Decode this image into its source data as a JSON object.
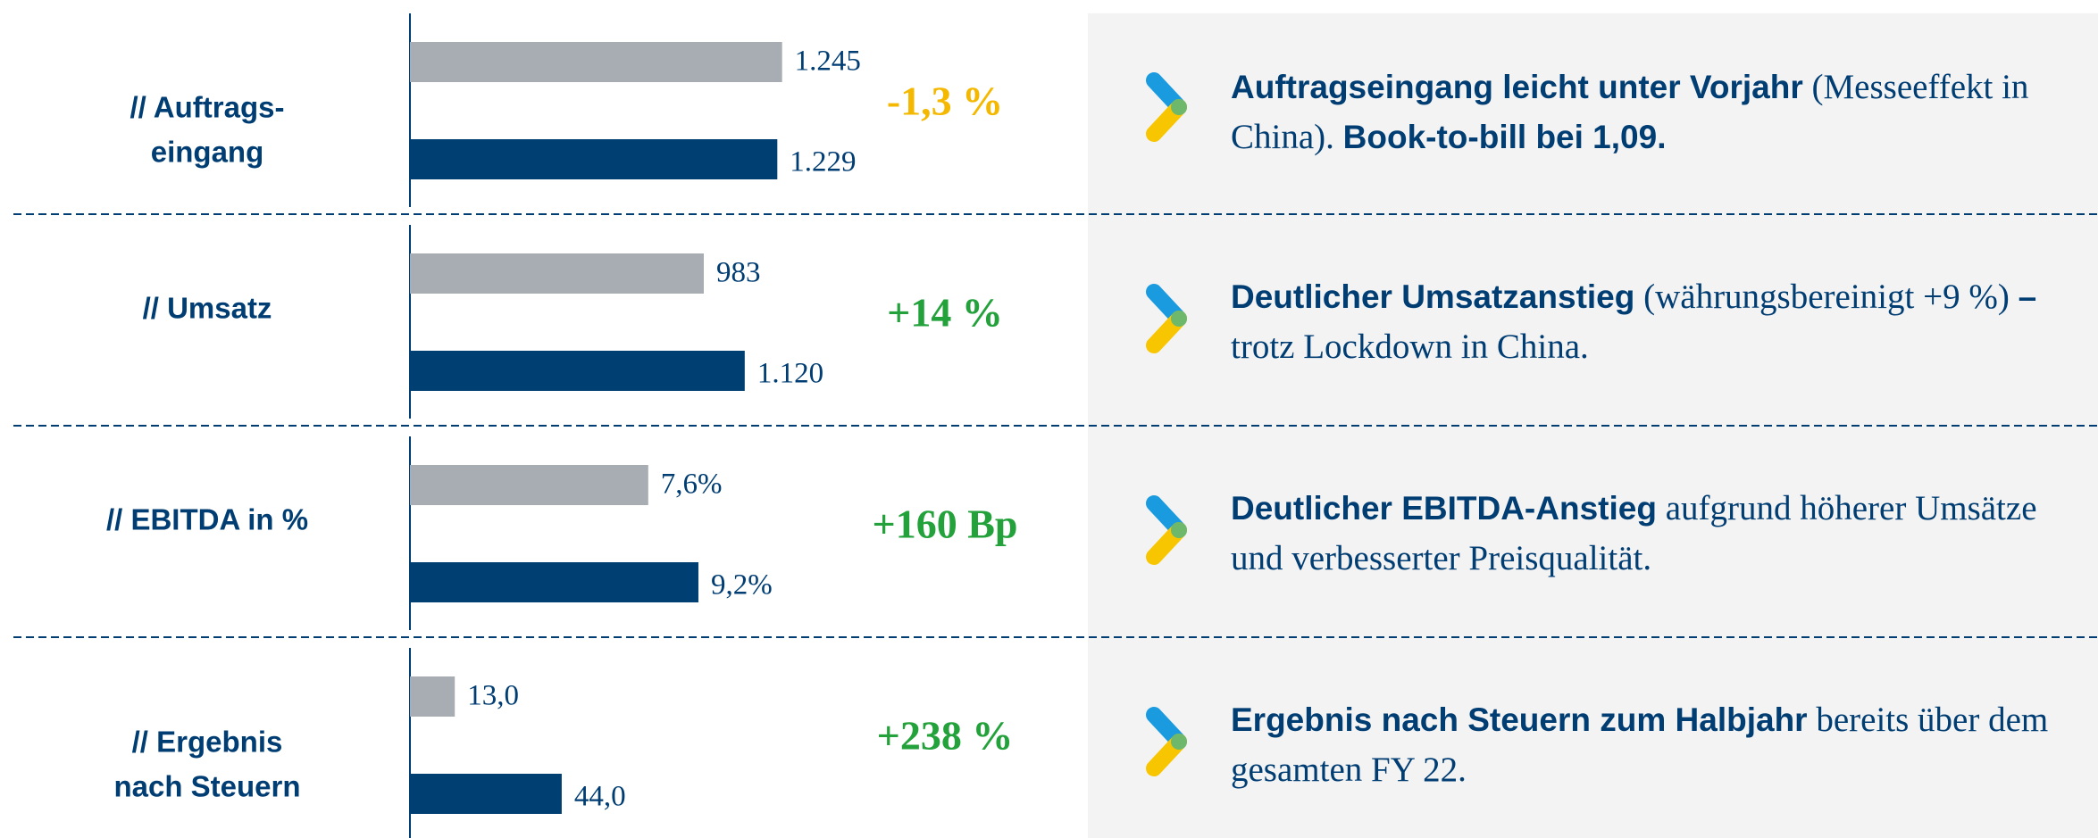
{
  "chart_data": [
    {
      "type": "bar",
      "label": [
        "// Auftrags-",
        "eingang"
      ],
      "xlim": [
        0,
        1500
      ],
      "values": [
        1245,
        1229
      ],
      "value_labels": [
        "1.245",
        "1.229"
      ],
      "colors": [
        "#a7adb2",
        "#003f72"
      ],
      "change": "-1,3 %",
      "change_color": "#f5b800",
      "comment": [
        {
          "text": "Auftragseingang leicht unter Vorjahr",
          "bold": true
        },
        {
          "text": "(Messeeffekt in China).",
          "bold": false
        },
        {
          "text": "Book-to-bill bei 1,09.",
          "bold": true
        }
      ]
    },
    {
      "type": "bar",
      "label": [
        "// Umsatz"
      ],
      "xlim": [
        0,
        1500
      ],
      "values": [
        983,
        1120
      ],
      "value_labels": [
        "983",
        "1.120"
      ],
      "colors": [
        "#a7adb2",
        "#003f72"
      ],
      "change": "+14 %",
      "change_color": "#23a13a",
      "comment": [
        {
          "text": "Deutlicher Umsatzanstieg",
          "bold": true
        },
        {
          "text": "(währungsbereinigt +9 %)",
          "bold": false
        },
        {
          "text": "–",
          "bold": true
        },
        {
          "text": "trotz Lockdown in China.",
          "bold": false
        }
      ]
    },
    {
      "type": "bar",
      "label": [
        "// EBITDA in %"
      ],
      "xlim": [
        0,
        14.3
      ],
      "values": [
        7.6,
        9.2
      ],
      "value_labels": [
        "7,6%",
        "9,2%"
      ],
      "colors": [
        "#a7adb2",
        "#003f72"
      ],
      "change": "+160 Bp",
      "change_color": "#23a13a",
      "comment": [
        {
          "text": "Deutlicher EBITDA-Anstieg",
          "bold": true
        },
        {
          "text": "aufgrund höherer Umsätze und verbesserter Preisqualität.",
          "bold": false
        }
      ]
    },
    {
      "type": "bar",
      "label": [
        "// Ergebnis",
        "nach Steuern"
      ],
      "xlim": [
        0,
        130
      ],
      "values": [
        13.0,
        44.0
      ],
      "value_labels": [
        "13,0",
        "44,0"
      ],
      "colors": [
        "#a7adb2",
        "#003f72"
      ],
      "change": "+238 %",
      "change_color": "#23a13a",
      "comment": [
        {
          "text": "Ergebnis nach Steuern zum Halbjahr",
          "bold": true
        },
        {
          "text": "bereits über dem gesamten FY 22.",
          "bold": false
        }
      ]
    }
  ]
}
